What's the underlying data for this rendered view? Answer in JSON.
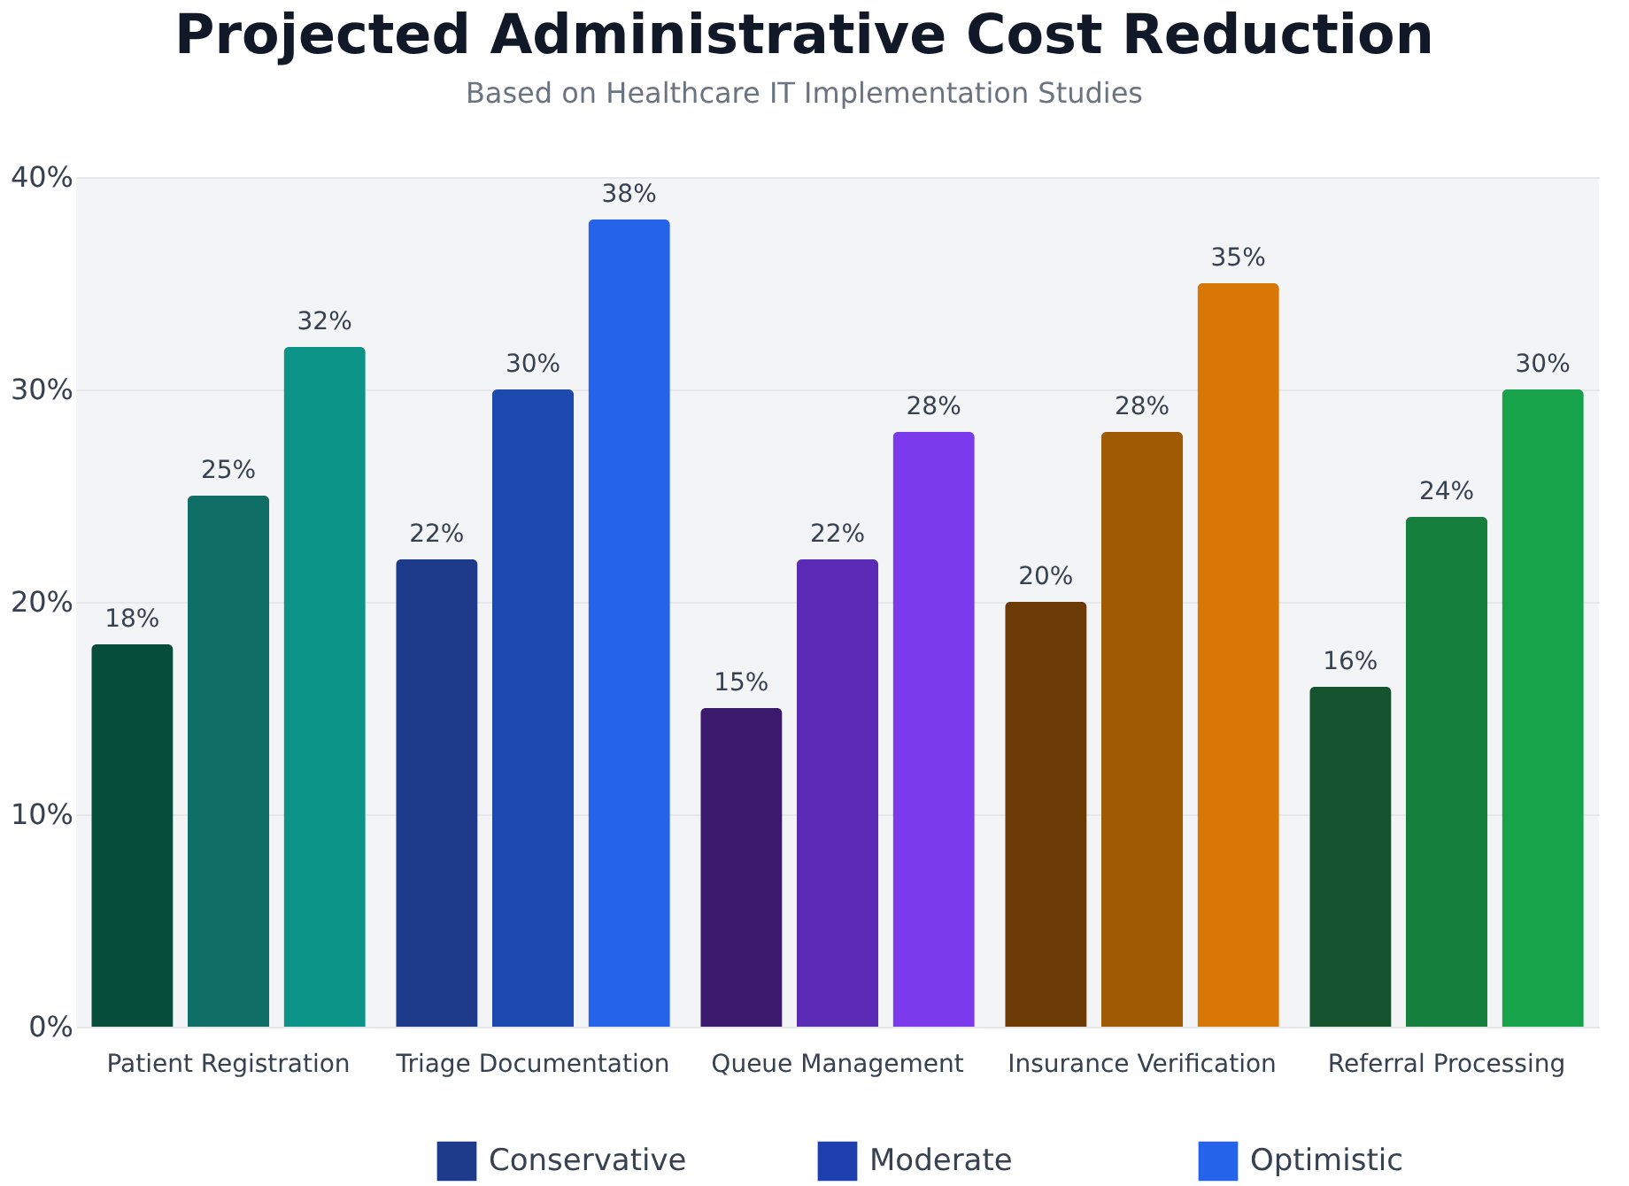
{
  "chart_data": {
    "type": "bar",
    "title": "Projected Administrative Cost Reduction",
    "subtitle": "Based on Healthcare IT Implementation Studies",
    "categories": [
      "Patient Registration",
      "Triage Documentation",
      "Queue Management",
      "Insurance Verification",
      "Referral Processing"
    ],
    "series": [
      {
        "name": "Conservative",
        "color": "#1e3a8a",
        "colors": [
          "#064e3b",
          "#1e3a8a",
          "#3b1a6e",
          "#6b3a05",
          "#14532d"
        ],
        "values": [
          18,
          22,
          15,
          20,
          16
        ],
        "value_labels": [
          "18%",
          "22%",
          "15%",
          "20%",
          "16%"
        ]
      },
      {
        "name": "Moderate",
        "color": "#1e40af",
        "colors": [
          "#0f6e66",
          "#1e4ab0",
          "#5b2bb6",
          "#a05a04",
          "#15803d"
        ],
        "values": [
          25,
          30,
          22,
          28,
          24
        ],
        "value_labels": [
          "25%",
          "30%",
          "22%",
          "28%",
          "24%"
        ]
      },
      {
        "name": "Optimistic",
        "color": "#2563eb",
        "colors": [
          "#0d9488",
          "#2563eb",
          "#7c3aed",
          "#d97706",
          "#16a34a"
        ],
        "values": [
          32,
          38,
          28,
          35,
          30
        ],
        "value_labels": [
          "32%",
          "38%",
          "28%",
          "35%",
          "30%"
        ]
      }
    ],
    "ylim": [
      0,
      40
    ],
    "yticks": [
      {
        "value": 0,
        "label": "0%"
      },
      {
        "value": 10,
        "label": "10%"
      },
      {
        "value": 20,
        "label": "20%"
      },
      {
        "value": 30,
        "label": "30%"
      },
      {
        "value": 40,
        "label": "40%"
      }
    ],
    "grid": "y",
    "legend": "bottom"
  }
}
